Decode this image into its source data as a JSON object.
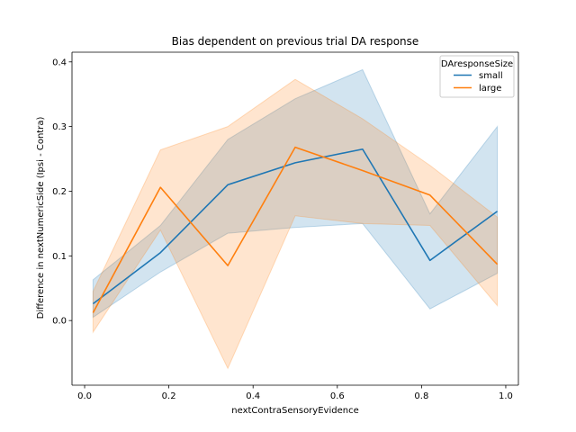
{
  "chart_data": {
    "type": "line",
    "title": "Bias dependent on previous trial DA response",
    "xlabel": "nextContraSensoryEvidence",
    "ylabel": "Difference in nextNumericSide (Ipsi - Contra)",
    "xlim": [
      -0.03,
      1.03
    ],
    "ylim": [
      -0.1,
      0.415
    ],
    "xticks": [
      0.0,
      0.2,
      0.4,
      0.6,
      0.8,
      1.0
    ],
    "xtick_labels": [
      "0.0",
      "0.2",
      "0.4",
      "0.6",
      "0.8",
      "1.0"
    ],
    "yticks": [
      0.0,
      0.1,
      0.2,
      0.3,
      0.4
    ],
    "ytick_labels": [
      "0.0",
      "0.1",
      "0.2",
      "0.3",
      "0.4"
    ],
    "grid": false,
    "legend": {
      "title": "DAresponseSize",
      "placement": "top-right"
    },
    "x": [
      0.02,
      0.18,
      0.34,
      0.5,
      0.66,
      0.82,
      0.98
    ],
    "series": [
      {
        "name": "small",
        "color": "#1f77b4",
        "values": [
          0.026,
          0.105,
          0.21,
          0.244,
          0.265,
          0.093,
          0.169
        ],
        "ci_lower": [
          0.005,
          0.075,
          0.135,
          0.144,
          0.15,
          0.018,
          0.073
        ],
        "ci_upper": [
          0.063,
          0.147,
          0.28,
          0.343,
          0.388,
          0.165,
          0.3
        ]
      },
      {
        "name": "large",
        "color": "#ff7f0e",
        "values": [
          0.012,
          0.206,
          0.085,
          0.268,
          0.232,
          0.194,
          0.087
        ],
        "ci_lower": [
          -0.018,
          0.14,
          -0.074,
          0.162,
          0.15,
          0.147,
          0.023
        ],
        "ci_upper": [
          0.045,
          0.264,
          0.3,
          0.373,
          0.312,
          0.24,
          0.16
        ]
      }
    ]
  }
}
